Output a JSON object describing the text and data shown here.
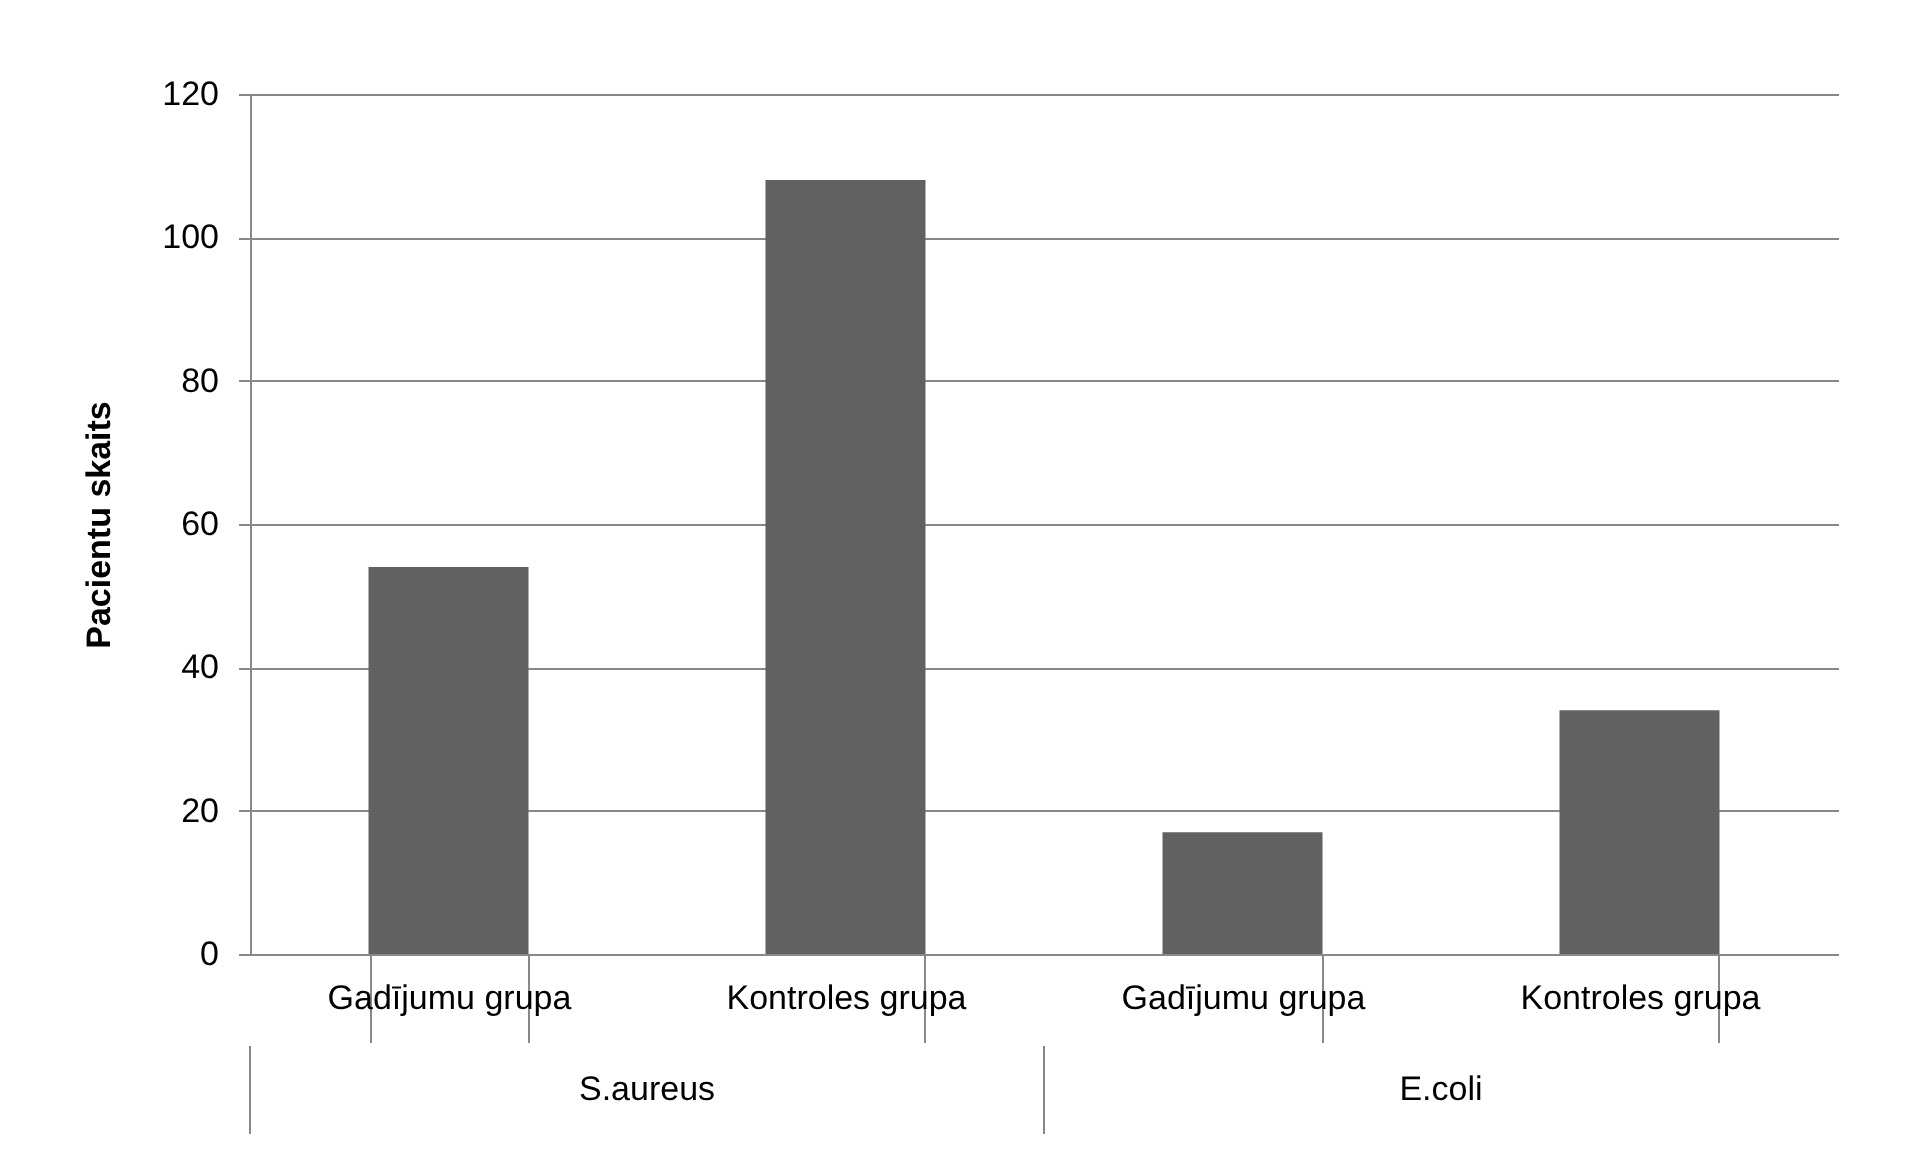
{
  "chart_data": {
    "type": "bar",
    "ylabel": "Pacientu skaits",
    "categories": [
      "Gadījumu grupa",
      "Kontroles grupa",
      "Gadījumu grupa",
      "Kontroles grupa"
    ],
    "values": [
      54,
      108,
      17,
      34
    ],
    "color": "#616161",
    "ylim": [
      0,
      120
    ],
    "yticks": [
      0,
      20,
      40,
      60,
      80,
      100,
      120
    ],
    "grid": "y",
    "annotations": [
      "S.aureus",
      "E.coli"
    ]
  }
}
